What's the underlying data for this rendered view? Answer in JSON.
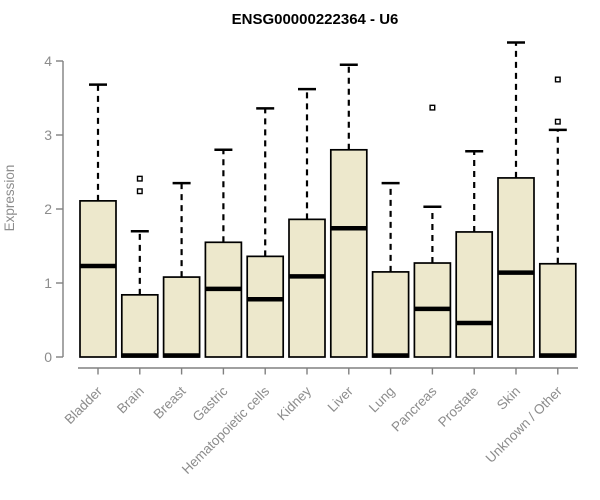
{
  "chart_data": {
    "type": "boxplot",
    "title": "ENSG00000222364 - U6",
    "ylabel": "Expression",
    "xlabel": "",
    "ylim": [
      0,
      4
    ],
    "yticks": [
      0,
      1,
      2,
      3,
      4
    ],
    "grid": false,
    "legend": "none",
    "categories": [
      "Bladder",
      "Brain",
      "Breast",
      "Gastric",
      "Hematopoietic cells",
      "Kidney",
      "Liver",
      "Lung",
      "Pancreas",
      "Prostate",
      "Skin",
      "Unknown / Other"
    ],
    "boxes": [
      {
        "category": "Bladder",
        "whisker_low": 0,
        "q1": 0,
        "median": 1.23,
        "q3": 2.11,
        "whisker_high": 3.68,
        "outliers": []
      },
      {
        "category": "Brain",
        "whisker_low": 0,
        "q1": 0,
        "median": 0.02,
        "q3": 0.84,
        "whisker_high": 1.7,
        "outliers": [
          2.24,
          2.41
        ]
      },
      {
        "category": "Breast",
        "whisker_low": 0,
        "q1": 0,
        "median": 0.02,
        "q3": 1.08,
        "whisker_high": 2.35,
        "outliers": []
      },
      {
        "category": "Gastric",
        "whisker_low": 0,
        "q1": 0,
        "median": 0.92,
        "q3": 1.55,
        "whisker_high": 2.8,
        "outliers": []
      },
      {
        "category": "Hematopoietic cells",
        "whisker_low": 0,
        "q1": 0,
        "median": 0.78,
        "q3": 1.36,
        "whisker_high": 3.36,
        "outliers": []
      },
      {
        "category": "Kidney",
        "whisker_low": 0,
        "q1": 0,
        "median": 1.09,
        "q3": 1.86,
        "whisker_high": 3.62,
        "outliers": []
      },
      {
        "category": "Liver",
        "whisker_low": 0,
        "q1": 0,
        "median": 1.74,
        "q3": 2.8,
        "whisker_high": 3.95,
        "outliers": []
      },
      {
        "category": "Lung",
        "whisker_low": 0,
        "q1": 0,
        "median": 0.02,
        "q3": 1.15,
        "whisker_high": 2.35,
        "outliers": []
      },
      {
        "category": "Pancreas",
        "whisker_low": 0,
        "q1": 0,
        "median": 0.65,
        "q3": 1.27,
        "whisker_high": 2.03,
        "outliers": [
          3.37
        ]
      },
      {
        "category": "Prostate",
        "whisker_low": 0,
        "q1": 0,
        "median": 0.46,
        "q3": 1.69,
        "whisker_high": 2.78,
        "outliers": []
      },
      {
        "category": "Skin",
        "whisker_low": 0,
        "q1": 0,
        "median": 1.14,
        "q3": 2.42,
        "whisker_high": 4.25,
        "outliers": []
      },
      {
        "category": "Unknown / Other",
        "whisker_low": 0,
        "q1": 0,
        "median": 0.02,
        "q3": 1.26,
        "whisker_high": 3.07,
        "outliers": [
          3.18,
          3.75
        ]
      }
    ],
    "colors": {
      "box_fill": "#EDE8CC",
      "box_border": "#000000",
      "median": "#000000",
      "whisker": "#000000",
      "outlier_fill": "#FFFFFF",
      "outlier_border": "#000000",
      "axis": "#808080",
      "tick_label": "#8C8C8C",
      "title": "#000000",
      "background": "#FFFFFF"
    }
  }
}
